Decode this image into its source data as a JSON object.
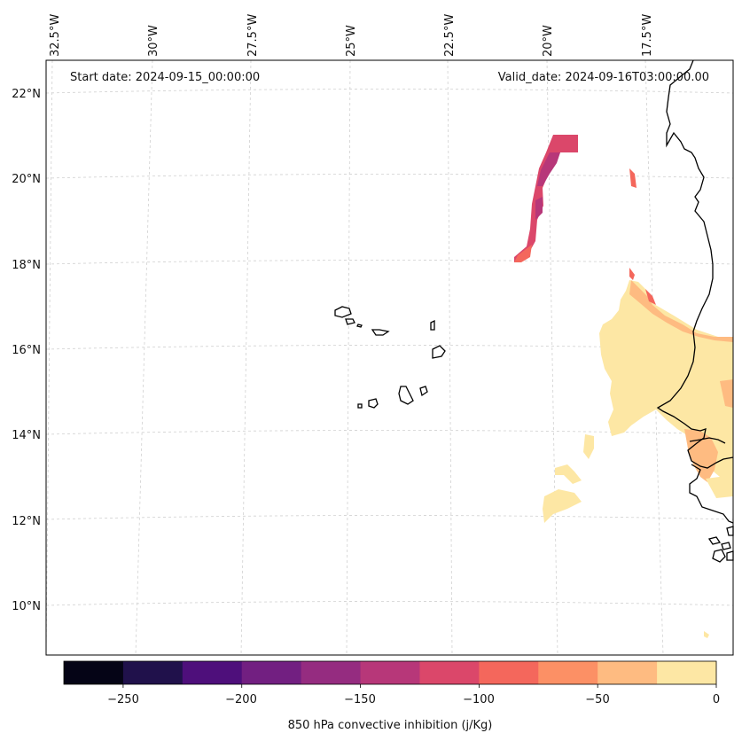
{
  "map": {
    "start_date": "Start date: 2024-09-15_00:00:00",
    "valid_date": "Valid_date: 2024-09-16T03:00:00.00",
    "longitude_labels": [
      "32.5°W",
      "30°W",
      "27.5°W",
      "25°W",
      "22.5°W",
      "20°W",
      "17.5°W"
    ],
    "latitude_labels": [
      "22°N",
      "20°N",
      "18°N",
      "16°N",
      "14°N",
      "12°N",
      "10°N"
    ],
    "gridline_color": "#d0d0d0",
    "coastline_color": "#000000"
  },
  "colorbar": {
    "label": "850 hPa convective inhibition (j/Kg)",
    "tick_labels": [
      "−250",
      "−200",
      "−150",
      "−100",
      "−50",
      "0"
    ],
    "min": -275,
    "max": 0,
    "bins": [
      {
        "from": -275,
        "to": -250,
        "color": "#050416"
      },
      {
        "from": -250,
        "to": -225,
        "color": "#20114b"
      },
      {
        "from": -225,
        "to": -200,
        "color": "#4e0f7b"
      },
      {
        "from": -200,
        "to": -175,
        "color": "#721f81"
      },
      {
        "from": -175,
        "to": -150,
        "color": "#952c80"
      },
      {
        "from": -150,
        "to": -125,
        "color": "#b73779"
      },
      {
        "from": -125,
        "to": -100,
        "color": "#db476a"
      },
      {
        "from": -100,
        "to": -75,
        "color": "#f4675c"
      },
      {
        "from": -75,
        "to": -50,
        "color": "#fc9065"
      },
      {
        "from": -50,
        "to": -25,
        "color": "#febb81"
      },
      {
        "from": -25,
        "to": 0,
        "color": "#fde7a4"
      }
    ]
  }
}
